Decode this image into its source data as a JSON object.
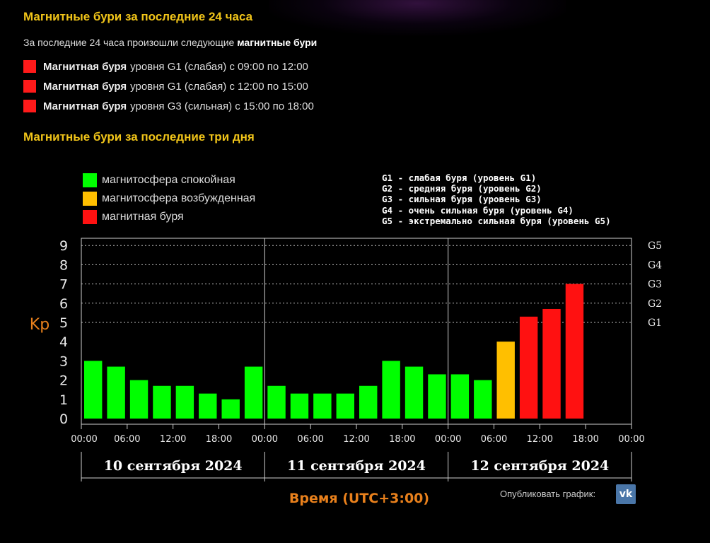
{
  "header": {
    "title_24h": "Магнитные бури за последние 24 часа",
    "intro_prefix": "За последние 24 часа произошли следующие",
    "intro_bold": "магнитные бури",
    "title_3d": "Магнитные бури за последние три дня"
  },
  "storms": [
    {
      "bold": "Магнитная буря",
      "text": "уровня G1 (слабая) с 09:00 по 12:00"
    },
    {
      "bold": "Магнитная буря",
      "text": "уровня G1 (слабая) с 12:00 по 15:00"
    },
    {
      "bold": "Магнитная буря",
      "text": "уровня G3 (сильная) с 15:00 по 18:00"
    }
  ],
  "legend": {
    "calm": "магнитосфера спокойная",
    "excited": "магнитосфера возбужденная",
    "storm": "магнитная буря"
  },
  "g_legend": [
    "G1 - слабая буря (уровень G1)",
    "G2 - средняя буря (уровень G2)",
    "G3 - сильная буря (уровень G3)",
    "G4 - очень сильная буря (уровень G4)",
    "G5 - экстремально сильная буря (уровень G5)"
  ],
  "colors": {
    "calm": "#00ff00",
    "excited": "#ffbf00",
    "storm": "#ff1111",
    "title": "#f0c419",
    "axis_label": "#e8801c"
  },
  "publish": {
    "label": "Опубликовать график:",
    "vk": "vk"
  },
  "chart_data": {
    "type": "bar",
    "ylabel": "Kp",
    "xlabel": "Время (UTC+3:00)",
    "ylim": [
      0,
      9
    ],
    "y_ticks": [
      0,
      1,
      2,
      3,
      4,
      5,
      6,
      7,
      8,
      9
    ],
    "g_ticks": [
      {
        "kp": 5,
        "label": "G1"
      },
      {
        "kp": 6,
        "label": "G2"
      },
      {
        "kp": 7,
        "label": "G3"
      },
      {
        "kp": 8,
        "label": "G4"
      },
      {
        "kp": 9,
        "label": "G5"
      }
    ],
    "x_ticks": [
      "00:00",
      "06:00",
      "12:00",
      "18:00",
      "00:00",
      "06:00",
      "12:00",
      "18:00",
      "00:00",
      "06:00",
      "12:00",
      "18:00",
      "00:00"
    ],
    "days": [
      "10 сентября 2024",
      "11 сентября 2024",
      "12 сентября 2024"
    ],
    "slots_per_day": 8,
    "grid": "dotted at Kp 5-9",
    "values": [
      3.0,
      2.7,
      2.0,
      1.7,
      1.7,
      1.3,
      1.0,
      2.7,
      1.7,
      1.3,
      1.3,
      1.3,
      1.7,
      3.0,
      2.7,
      2.3,
      2.3,
      2.0,
      4.0,
      5.3,
      5.7,
      7.0
    ],
    "levels": [
      "calm",
      "calm",
      "calm",
      "calm",
      "calm",
      "calm",
      "calm",
      "calm",
      "calm",
      "calm",
      "calm",
      "calm",
      "calm",
      "calm",
      "calm",
      "calm",
      "calm",
      "calm",
      "excited",
      "storm",
      "storm",
      "storm"
    ]
  }
}
